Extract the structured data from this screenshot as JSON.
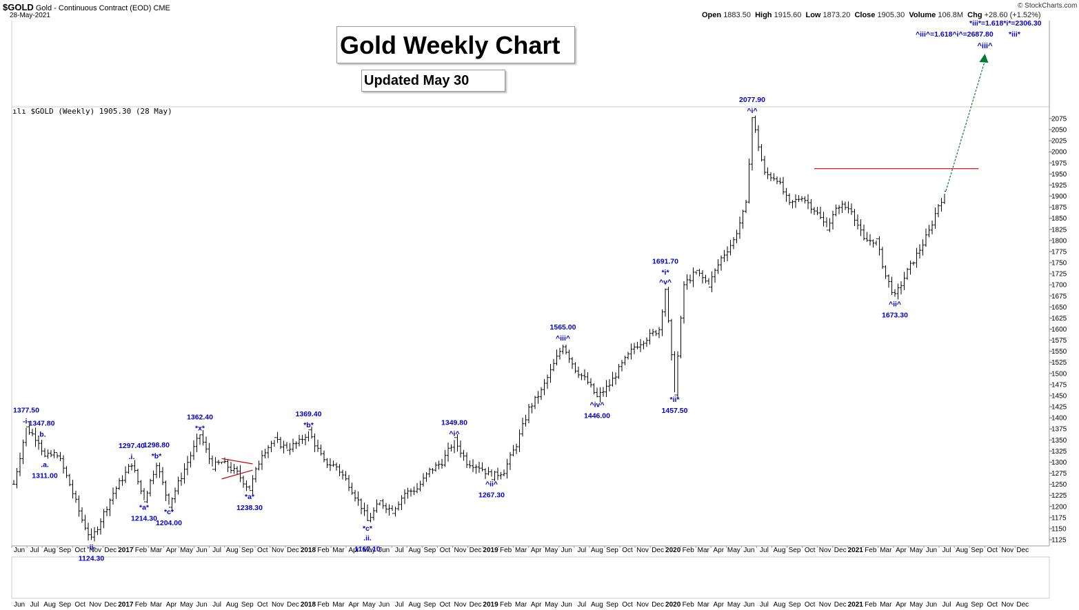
{
  "header": {
    "symbol": "$GOLD",
    "name": "Gold - Continuous Contract (EOD)",
    "exchange": "CME",
    "date": "28-May-2021",
    "open_label": "Open",
    "open": "1883.50",
    "high_label": "High",
    "high": "1915.60",
    "low_label": "Low",
    "low": "1873.20",
    "close_label": "Close",
    "close": "1905.30",
    "volume_label": "Volume",
    "volume": "106.8M",
    "chg_label": "Chg",
    "chg": "+28.60 (+1.52%)",
    "watermark": "© StockCharts.com"
  },
  "title_box": {
    "title": "Gold Weekly Chart",
    "updated": "Updated May 30"
  },
  "legend": {
    "ticker": "$GOLD (Weekly) 1905.30 (28 May)"
  },
  "colors": {
    "annotation": "#0000cc",
    "bars": "#000000",
    "resistance": "#dd0000",
    "target_arrow": "#007a33",
    "triangle": "#cc0000"
  },
  "chart_data": {
    "type": "ohlc",
    "frequency": "weekly",
    "y_ticks": [
      1125,
      1150,
      1175,
      1200,
      1225,
      1250,
      1275,
      1300,
      1325,
      1350,
      1375,
      1400,
      1425,
      1450,
      1475,
      1500,
      1525,
      1550,
      1575,
      1600,
      1625,
      1650,
      1675,
      1700,
      1725,
      1750,
      1775,
      1800,
      1825,
      1850,
      1875,
      1900,
      1925,
      1950,
      1975,
      2000,
      2025,
      2050,
      2075
    ],
    "ylim": [
      1115,
      2090
    ],
    "x_tick_labels": [
      "Jun",
      "Jul",
      "Aug",
      "Sep",
      "Oct",
      "Nov",
      "Dec",
      "2017",
      "Feb",
      "Mar",
      "Apr",
      "May",
      "Jun",
      "Jul",
      "Aug",
      "Sep",
      "Oct",
      "Nov",
      "Dec",
      "2018",
      "Feb",
      "Mar",
      "Apr",
      "May",
      "Jun",
      "Jul",
      "Aug",
      "Sep",
      "Oct",
      "Nov",
      "Dec",
      "2019",
      "Feb",
      "Mar",
      "Apr",
      "May",
      "Jun",
      "Jul",
      "Aug",
      "Sep",
      "Oct",
      "Nov",
      "Dec",
      "2020",
      "Feb",
      "Mar",
      "Apr",
      "May",
      "Jun",
      "Jul",
      "Aug",
      "Sep",
      "Oct",
      "Nov",
      "Dec",
      "2021",
      "Feb",
      "Mar",
      "Apr",
      "May",
      "Jun",
      "Jul",
      "Aug",
      "Sep",
      "Oct",
      "Nov",
      "Dec"
    ],
    "x_tick_bold": [
      "2017",
      "2018",
      "2019",
      "2020",
      "2021"
    ],
    "anchors": [
      [
        0,
        1250
      ],
      [
        4,
        1377.5
      ],
      [
        8,
        1347.8
      ],
      [
        10,
        1311
      ],
      [
        14,
        1320
      ],
      [
        18,
        1250
      ],
      [
        22,
        1170
      ],
      [
        25,
        1124.3
      ],
      [
        32,
        1230
      ],
      [
        38,
        1297.4
      ],
      [
        42,
        1214.3
      ],
      [
        46,
        1298.8
      ],
      [
        50,
        1204
      ],
      [
        56,
        1300
      ],
      [
        60,
        1362.4
      ],
      [
        64,
        1290
      ],
      [
        67,
        1300
      ],
      [
        72,
        1275
      ],
      [
        76,
        1238.3
      ],
      [
        80,
        1320
      ],
      [
        84,
        1350
      ],
      [
        88,
        1330
      ],
      [
        92,
        1345
      ],
      [
        95,
        1369.4
      ],
      [
        100,
        1300
      ],
      [
        104,
        1290
      ],
      [
        108,
        1250
      ],
      [
        112,
        1200
      ],
      [
        114,
        1167.1
      ],
      [
        118,
        1210
      ],
      [
        122,
        1190
      ],
      [
        126,
        1230
      ],
      [
        130,
        1240
      ],
      [
        134,
        1280
      ],
      [
        138,
        1300
      ],
      [
        142,
        1349.8
      ],
      [
        146,
        1300
      ],
      [
        150,
        1290
      ],
      [
        154,
        1267.3
      ],
      [
        158,
        1280
      ],
      [
        162,
        1340
      ],
      [
        166,
        1420
      ],
      [
        170,
        1460
      ],
      [
        174,
        1520
      ],
      [
        177,
        1565
      ],
      [
        181,
        1510
      ],
      [
        185,
        1480
      ],
      [
        188,
        1446
      ],
      [
        192,
        1475
      ],
      [
        196,
        1520
      ],
      [
        200,
        1560
      ],
      [
        204,
        1580
      ],
      [
        208,
        1600
      ],
      [
        210,
        1691.7
      ],
      [
        213,
        1457.5
      ],
      [
        216,
        1700
      ],
      [
        220,
        1730
      ],
      [
        224,
        1700
      ],
      [
        228,
        1760
      ],
      [
        232,
        1800
      ],
      [
        236,
        1880
      ],
      [
        238,
        2077.9
      ],
      [
        242,
        1950
      ],
      [
        246,
        1940
      ],
      [
        250,
        1880
      ],
      [
        254,
        1900
      ],
      [
        258,
        1870
      ],
      [
        262,
        1830
      ],
      [
        266,
        1880
      ],
      [
        270,
        1870
      ],
      [
        274,
        1800
      ],
      [
        278,
        1800
      ],
      [
        281,
        1720
      ],
      [
        284,
        1673.3
      ],
      [
        288,
        1730
      ],
      [
        292,
        1780
      ],
      [
        295,
        1820
      ],
      [
        298,
        1880
      ],
      [
        300,
        1905.3
      ]
    ],
    "resistance": {
      "price": 1962,
      "from_week": 258,
      "to_week": 311
    },
    "target_arrow": {
      "from_week": 300,
      "from_price": 1912,
      "to_week": 313,
      "label": "^iii^"
    },
    "annotations": [
      {
        "week": 4,
        "price": 1377.5,
        "value": "1377.50",
        "label": "-i-",
        "pos": "above"
      },
      {
        "week": 9,
        "price": 1347.8,
        "value": "1347.80",
        "label": ".b.",
        "pos": "above"
      },
      {
        "week": 10,
        "price": 1311,
        "value": "1311.00",
        "label": ".a.",
        "pos": "below"
      },
      {
        "week": 25,
        "price": 1124.3,
        "value": "1124.30",
        "label": "-ii-",
        "pos": "below"
      },
      {
        "week": 38,
        "price": 1297.4,
        "value": "1297.40",
        "label": ".i.",
        "pos": "above"
      },
      {
        "week": 42,
        "price": 1214.3,
        "value": "1214.30",
        "label": "*a*",
        "pos": "below"
      },
      {
        "week": 46,
        "price": 1298.8,
        "value": "1298.80",
        "label": "*b*",
        "pos": "above"
      },
      {
        "week": 50,
        "price": 1204,
        "value": "1204.00",
        "label": "*c*",
        "pos": "below"
      },
      {
        "week": 60,
        "price": 1362.4,
        "value": "1362.40",
        "label": "*x*",
        "pos": "above"
      },
      {
        "week": 76,
        "price": 1238.3,
        "value": "1238.30",
        "label": "*a*",
        "pos": "below"
      },
      {
        "week": 95,
        "price": 1369.4,
        "value": "1369.40",
        "label": "*b*",
        "pos": "above"
      },
      {
        "week": 114,
        "price": 1167.1,
        "value": "1167.10",
        "label": "*c*",
        "label2": ".ii.",
        "pos": "below"
      },
      {
        "week": 142,
        "price": 1349.8,
        "value": "1349.80",
        "label": "^i^",
        "pos": "above"
      },
      {
        "week": 154,
        "price": 1267.3,
        "value": "1267.30",
        "label": "^ii^",
        "pos": "below"
      },
      {
        "week": 177,
        "price": 1565,
        "value": "1565.00",
        "label": "^iii^",
        "pos": "above"
      },
      {
        "week": 188,
        "price": 1446,
        "value": "1446.00",
        "label": "^iv^",
        "pos": "below"
      },
      {
        "week": 210,
        "price": 1691.7,
        "value": "1691.70",
        "label": "*i*",
        "label2": "^v^",
        "pos": "above"
      },
      {
        "week": 213,
        "price": 1457.5,
        "value": "1457.50",
        "label": "*ii*",
        "pos": "below"
      },
      {
        "week": 238,
        "price": 2077.9,
        "value": "2077.90",
        "label": "^i^",
        "pos": "above"
      },
      {
        "week": 284,
        "price": 1673.3,
        "value": "1673.30",
        "label": "^ii^",
        "pos": "below"
      }
    ],
    "projections": [
      "*iii*=1.618*i*=2306.30",
      "^iii^=1.618^i^=2687.80",
      "*iii*"
    ]
  }
}
